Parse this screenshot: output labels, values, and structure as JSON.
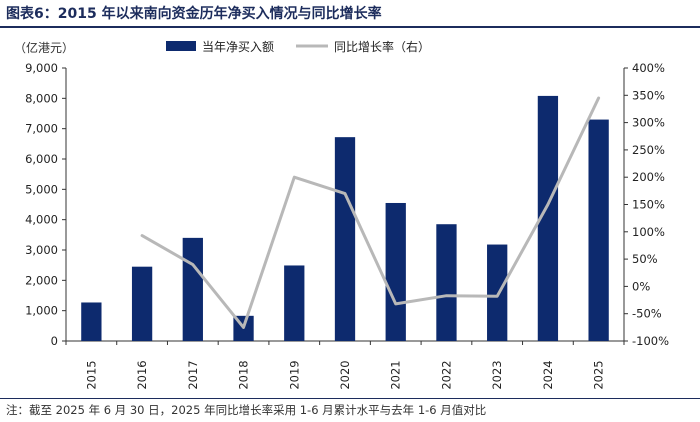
{
  "header": {
    "title": "图表6：2015 年以来南向资金历年净买入情况与同比增长率"
  },
  "footer": {
    "note": "注：截至 2025 年 6 月 30 日，2025 年同比增长率采用 1-6 月累计水平与去年 1-6 月值对比"
  },
  "chart_data": {
    "type": "bar",
    "categories": [
      "2015",
      "2016",
      "2017",
      "2018",
      "2019",
      "2020",
      "2021",
      "2022",
      "2023",
      "2024",
      "2025"
    ],
    "y_unit_label": "（亿港元）",
    "series": [
      {
        "name": "当年净买入额",
        "type": "bar",
        "axis": "left",
        "color": "#0d2a6e",
        "values": [
          1270,
          2450,
          3400,
          830,
          2490,
          6720,
          4550,
          3850,
          3180,
          8080,
          7300
        ]
      },
      {
        "name": "同比增长率（右）",
        "type": "line",
        "axis": "right",
        "color": "#b8b8b8",
        "values": [
          null,
          93,
          40,
          -75,
          200,
          170,
          -32,
          -17,
          -18,
          150,
          345
        ]
      }
    ],
    "y_left": {
      "min": 0,
      "max": 9000,
      "ticks": [
        0,
        1000,
        2000,
        3000,
        4000,
        5000,
        6000,
        7000,
        8000,
        9000
      ],
      "tick_labels": [
        "0",
        "1,000",
        "2,000",
        "3,000",
        "4,000",
        "5,000",
        "6,000",
        "7,000",
        "8,000",
        "9,000"
      ]
    },
    "y_right": {
      "min": -100,
      "max": 400,
      "ticks": [
        -100,
        -50,
        0,
        50,
        100,
        150,
        200,
        250,
        300,
        350,
        400
      ],
      "tick_labels": [
        "-100%",
        "-50%",
        "0%",
        "50%",
        "100%",
        "150%",
        "200%",
        "250%",
        "300%",
        "350%",
        "400%"
      ]
    },
    "grid": false,
    "legend_position": "top"
  }
}
